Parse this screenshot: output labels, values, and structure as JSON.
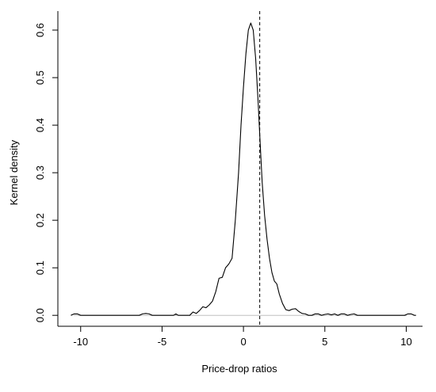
{
  "chart_data": {
    "type": "line",
    "title": "",
    "xlabel": "Price-drop ratios",
    "ylabel": "Kernel density",
    "xlim": [
      -11.4,
      11.0
    ],
    "ylim": [
      -0.023,
      0.64
    ],
    "x_ticks": [
      -10,
      -5,
      0,
      5,
      10
    ],
    "x_tick_labels": [
      "-10",
      "-5",
      "0",
      "5",
      "10"
    ],
    "y_ticks": [
      0.0,
      0.1,
      0.2,
      0.3,
      0.4,
      0.5,
      0.6
    ],
    "y_tick_labels": [
      "0.0",
      "0.1",
      "0.2",
      "0.3",
      "0.4",
      "0.5",
      "0.6"
    ],
    "grid": false,
    "legend": "none",
    "reference_lines": [
      {
        "orientation": "horizontal",
        "value": 0.0,
        "style": "solid",
        "color": "#c0c0c0"
      },
      {
        "orientation": "vertical",
        "value": 1.0,
        "style": "dashed",
        "color": "#000000"
      }
    ],
    "series": [
      {
        "x": [
          -10.6,
          -10.4,
          -10.2,
          -10.0,
          -9.8,
          -6.4,
          -6.2,
          -6.0,
          -5.8,
          -5.6,
          -4.3,
          -4.15,
          -4.0,
          -3.3,
          -3.1,
          -2.9,
          -2.7,
          -2.5,
          -2.3,
          -2.1,
          -1.9,
          -1.7,
          -1.5,
          -1.3,
          -1.1,
          -0.9,
          -0.7,
          -0.5,
          -0.3,
          -0.15,
          0.0,
          0.15,
          0.3,
          0.45,
          0.6,
          0.75,
          0.9,
          1.0,
          1.15,
          1.3,
          1.45,
          1.6,
          1.75,
          1.9,
          2.05,
          2.2,
          2.4,
          2.6,
          2.8,
          3.0,
          3.2,
          3.4,
          3.6,
          3.8,
          4.0,
          4.2,
          4.4,
          4.6,
          4.8,
          5.0,
          5.2,
          5.4,
          5.6,
          5.8,
          6.0,
          6.2,
          6.4,
          6.6,
          6.8,
          7.0,
          7.2,
          7.4,
          9.9,
          10.1,
          10.3,
          10.5,
          10.6
        ],
        "y": [
          0.0,
          0.003,
          0.003,
          0.0,
          0.0,
          0.0,
          0.003,
          0.004,
          0.003,
          0.0,
          0.0,
          0.003,
          0.0,
          0.0,
          0.007,
          0.004,
          0.01,
          0.018,
          0.016,
          0.022,
          0.03,
          0.05,
          0.078,
          0.08,
          0.1,
          0.108,
          0.12,
          0.2,
          0.3,
          0.4,
          0.48,
          0.55,
          0.6,
          0.615,
          0.6,
          0.54,
          0.45,
          0.38,
          0.28,
          0.21,
          0.16,
          0.12,
          0.09,
          0.072,
          0.066,
          0.045,
          0.025,
          0.012,
          0.01,
          0.013,
          0.014,
          0.008,
          0.004,
          0.003,
          0.0,
          0.0,
          0.003,
          0.003,
          0.0,
          0.002,
          0.003,
          0.001,
          0.003,
          0.0,
          0.003,
          0.003,
          0.0,
          0.002,
          0.003,
          0.0,
          0.0,
          0.0,
          0.0,
          0.003,
          0.003,
          0.0,
          0.0
        ]
      }
    ]
  }
}
